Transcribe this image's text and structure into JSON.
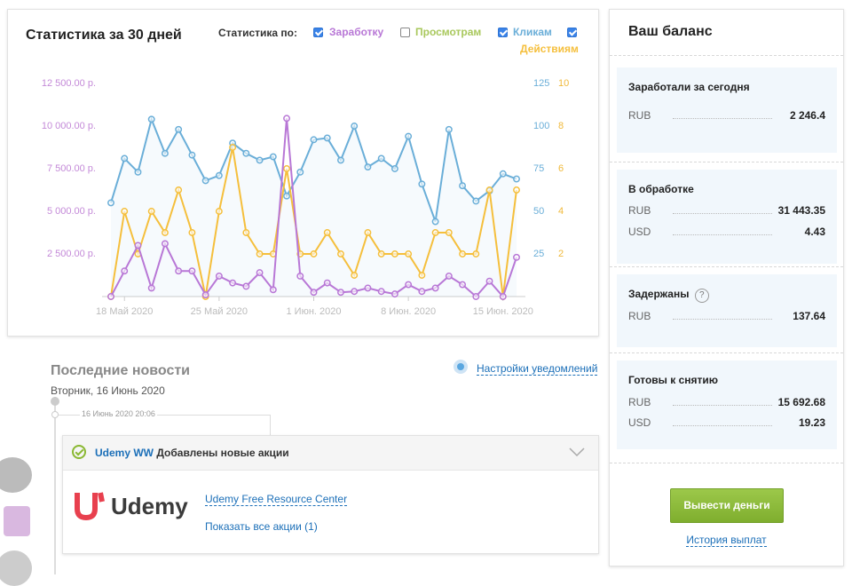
{
  "chart_data": {
    "type": "line",
    "title": "Статистика за 30 дней",
    "filter_label": "Статистика по:",
    "filters": [
      {
        "label": "Заработку",
        "color": "#b877d6",
        "checked": true
      },
      {
        "label": "Просмотрам",
        "color": "#a9c85d",
        "checked": false
      },
      {
        "label": "Кликам",
        "color": "#6aaed8",
        "checked": true
      },
      {
        "label": "Действиям",
        "color": "#f5bf3c",
        "checked": true
      }
    ],
    "x": [
      0,
      1,
      2,
      3,
      4,
      5,
      6,
      7,
      8,
      9,
      10,
      11,
      12,
      13,
      14,
      15,
      16,
      17,
      18,
      19,
      20,
      21,
      22,
      23,
      24,
      25,
      26,
      27,
      28,
      29,
      30
    ],
    "xlim": [
      0,
      30
    ],
    "xticks": [
      {
        "value": 1,
        "label": "18 Май 2020"
      },
      {
        "value": 8,
        "label": "25 Май 2020"
      },
      {
        "value": 15,
        "label": "1 Июн. 2020"
      },
      {
        "value": 22,
        "label": "8 Июн. 2020"
      },
      {
        "value": 29,
        "label": "15 Июн. 2020"
      }
    ],
    "ylim": [
      0,
      12500
    ],
    "yticks": [
      {
        "value": 2500,
        "label": "2 500.00 р."
      },
      {
        "value": 5000,
        "label": "5 000.00 р."
      },
      {
        "value": 7500,
        "label": "7 500.00 р."
      },
      {
        "value": 10000,
        "label": "10 000.00 р."
      },
      {
        "value": 12500,
        "label": "12 500.00 р."
      }
    ],
    "y2lim": [
      0,
      125
    ],
    "y2ticks": [
      25,
      50,
      75,
      100,
      125
    ],
    "y3lim": [
      0,
      10
    ],
    "y3ticks": [
      2,
      4,
      6,
      8,
      10
    ],
    "series": [
      {
        "color": "#6aaed8",
        "axis": "y2",
        "values": [
          55,
          81,
          73,
          104,
          84,
          98,
          83,
          68,
          71,
          90,
          84,
          80,
          82,
          59,
          73,
          92,
          93,
          80,
          100,
          76,
          81,
          75,
          94,
          66,
          44,
          98,
          65,
          56,
          62,
          72,
          69
        ]
      },
      {
        "color": "#f5bf3c",
        "axis": "y3",
        "values": [
          0,
          4,
          2,
          4,
          3,
          5,
          3,
          0,
          4,
          7,
          3,
          2,
          2,
          6,
          2,
          2,
          3,
          2,
          1,
          3,
          2,
          2,
          2,
          1,
          3,
          3,
          2,
          2,
          5,
          0,
          5
        ]
      },
      {
        "color": "#b877d6",
        "axis": "y",
        "values": [
          0,
          1500,
          3000,
          500,
          3100,
          1500,
          1500,
          100,
          1200,
          800,
          600,
          1400,
          400,
          10450,
          1200,
          250,
          800,
          250,
          300,
          500,
          300,
          150,
          700,
          300,
          500,
          1200,
          700,
          0,
          900,
          0,
          2300
        ]
      }
    ]
  },
  "news": {
    "title": "Последние новости",
    "date": "Вторник, 16 Июнь 2020",
    "settings_link": "Настройки уведомлений",
    "time": "16 Июнь 2020 20:06",
    "brand": "Udemy WW",
    "headline": "Добавлены новые акции",
    "logo": "Udemy",
    "links": [
      "Udemy Free Resource Center",
      "Показать все акции (1)"
    ]
  },
  "balance": {
    "title": "Ваш баланс",
    "sections": [
      {
        "title": "Заработали за сегодня",
        "rows": [
          [
            "RUB",
            "2 246.4"
          ]
        ]
      },
      {
        "title": "В обработке",
        "rows": [
          [
            "RUB",
            "31 443.35"
          ],
          [
            "USD",
            "4.43"
          ]
        ]
      },
      {
        "title": "Задержаны",
        "help": "?",
        "rows": [
          [
            "RUB",
            "137.64"
          ]
        ]
      },
      {
        "title": "Готовы к снятию",
        "rows": [
          [
            "RUB",
            "15 692.68"
          ],
          [
            "USD",
            "19.23"
          ]
        ]
      }
    ],
    "button": "Вывести деньги",
    "history_link": "История выплат"
  }
}
